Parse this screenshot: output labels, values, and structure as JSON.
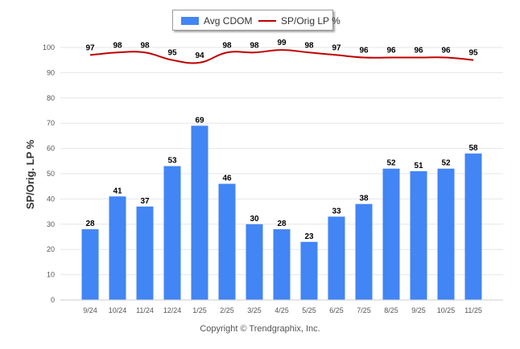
{
  "chart_data": {
    "type": "bar",
    "categories": [
      "9/24",
      "10/24",
      "11/24",
      "12/24",
      "1/25",
      "2/25",
      "3/25",
      "4/25",
      "5/25",
      "6/25",
      "7/25",
      "8/25",
      "9/25",
      "10/25",
      "11/25"
    ],
    "series": [
      {
        "name": "Avg CDOM",
        "type": "bar",
        "color": "#4285f4",
        "values": [
          28,
          41,
          37,
          53,
          69,
          46,
          30,
          28,
          23,
          33,
          38,
          52,
          51,
          52,
          58
        ]
      },
      {
        "name": "SP/Orig LP %",
        "type": "line",
        "color": "#c00000",
        "values": [
          97,
          98,
          98,
          95,
          94,
          98,
          98,
          99,
          98,
          97,
          96,
          96,
          96,
          96,
          95
        ]
      }
    ],
    "ylabel": "SP/Orig. LP %",
    "ylim": [
      0,
      100
    ],
    "yticks": [
      0,
      10,
      20,
      30,
      40,
      50,
      60,
      70,
      80,
      90,
      100
    ],
    "grid": true,
    "legend": "top-center"
  },
  "footer": {
    "copyright": "Copyright © Trendgraphix, Inc."
  }
}
